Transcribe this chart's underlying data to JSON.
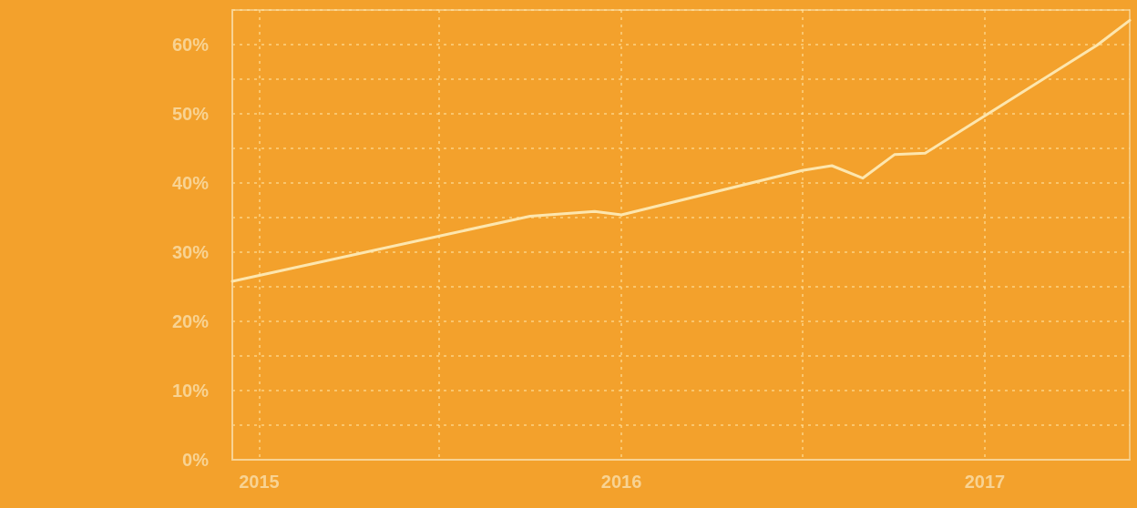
{
  "chart_data": {
    "type": "line",
    "marker": "none",
    "line_style": "solid",
    "grid": true,
    "x": [
      "2014-12-05",
      "2015-10-01",
      "2015-12-05",
      "2016-01-01",
      "2016-07-01",
      "2016-07-31",
      "2016-08-31",
      "2016-10-02",
      "2016-11-02",
      "2017-01-01",
      "2017-04-24",
      "2017-05-27"
    ],
    "values": [
      25.8,
      35.2,
      35.9,
      35.4,
      41.8,
      42.5,
      40.7,
      44.1,
      44.3,
      49.7,
      59.9,
      63.5
    ],
    "color": "#fde6ae",
    "xlim": [
      "2014-12-05",
      "2017-05-27"
    ],
    "xticks": [
      {
        "value": "2015-01-01",
        "label": "2015"
      },
      {
        "value": "2015-07-01",
        "label": null
      },
      {
        "value": "2016-01-01",
        "label": "2016"
      },
      {
        "value": "2016-07-01",
        "label": null
      },
      {
        "value": "2017-01-01",
        "label": "2017"
      }
    ],
    "ylim": [
      0,
      65
    ],
    "yticks": [
      {
        "value": 0,
        "label": "0%"
      },
      {
        "value": 5,
        "label": null
      },
      {
        "value": 10,
        "label": "10%"
      },
      {
        "value": 15,
        "label": null
      },
      {
        "value": 20,
        "label": "20%"
      },
      {
        "value": 25,
        "label": null
      },
      {
        "value": 30,
        "label": "30%"
      },
      {
        "value": 35,
        "label": null
      },
      {
        "value": 40,
        "label": "40%"
      },
      {
        "value": 45,
        "label": null
      },
      {
        "value": 50,
        "label": "50%"
      },
      {
        "value": 55,
        "label": null
      },
      {
        "value": 60,
        "label": "60%"
      },
      {
        "value": 65,
        "label": null
      }
    ]
  }
}
